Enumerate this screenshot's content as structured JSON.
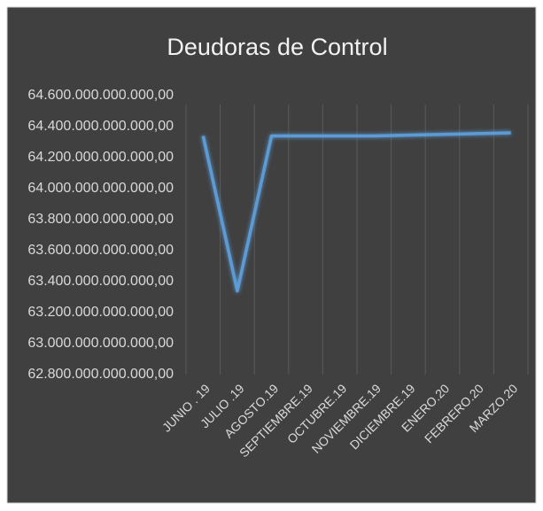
{
  "chart_data": {
    "type": "line",
    "title": "Deudoras de Control",
    "categories": [
      "JUNIO . 19",
      "JULIO .19",
      "AGOSTO.19",
      "SEPTIEMBRE.19",
      "OCTUBRE.19",
      "NOVIEMBRE.19",
      "DICIEMBRE.19",
      "ENERO.20",
      "FEBRERO.20",
      "MARZO.20"
    ],
    "values": [
      64340000000000,
      63340000000000,
      64340000000000,
      64340000000000,
      64340000000000,
      64340000000000,
      64345000000000,
      64350000000000,
      64355000000000,
      64360000000000
    ],
    "color": "#5b9bd5",
    "ylim": [
      62800000000000,
      64600000000000
    ],
    "yticks": [
      {
        "value": 62800000000000,
        "label": "62.800.000.000.000,00"
      },
      {
        "value": 63000000000000,
        "label": "63.000.000.000.000,00"
      },
      {
        "value": 63200000000000,
        "label": "63.200.000.000.000,00"
      },
      {
        "value": 63400000000000,
        "label": "63.400.000.000.000,00"
      },
      {
        "value": 63600000000000,
        "label": "63.600.000.000.000,00"
      },
      {
        "value": 63800000000000,
        "label": "63.800.000.000.000,00"
      },
      {
        "value": 64000000000000,
        "label": "64.000.000.000.000,00"
      },
      {
        "value": 64200000000000,
        "label": "64.200.000.000.000,00"
      },
      {
        "value": 64400000000000,
        "label": "64.400.000.000.000,00"
      },
      {
        "value": 64600000000000,
        "label": "64.600.000.000.000,00"
      }
    ]
  }
}
